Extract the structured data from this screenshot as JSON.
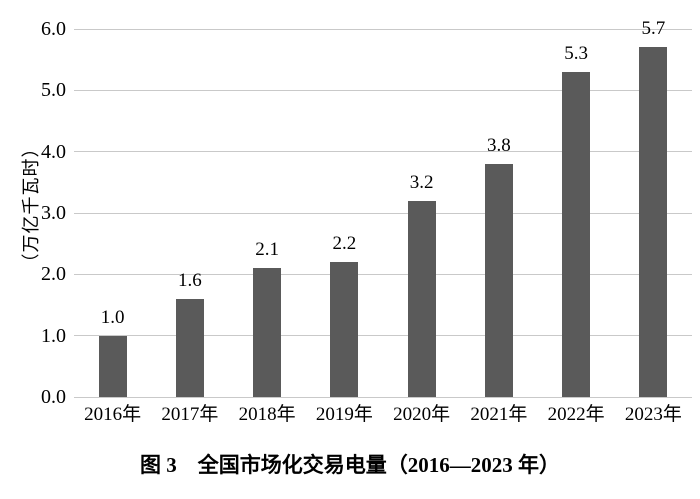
{
  "figure": {
    "caption": "图 3　全国市场化交易电量（2016—2023 年）"
  },
  "chart_data": {
    "type": "bar",
    "title": "图 3　全国市场化交易电量（2016—2023 年）",
    "categories": [
      "2016年",
      "2017年",
      "2018年",
      "2019年",
      "2020年",
      "2021年",
      "2022年",
      "2023年"
    ],
    "values": [
      1.0,
      1.6,
      2.1,
      2.2,
      3.2,
      3.8,
      5.3,
      5.7
    ],
    "value_labels": [
      "1.0",
      "1.6",
      "2.1",
      "2.2",
      "3.2",
      "3.8",
      "5.3",
      "5.7"
    ],
    "xlabel": "",
    "ylabel": "（万亿千瓦时）",
    "ylim": [
      0,
      6.0
    ],
    "y_ticks": [
      0.0,
      1.0,
      2.0,
      3.0,
      4.0,
      5.0,
      6.0
    ],
    "y_tick_labels": [
      "0.0",
      "1.0",
      "2.0",
      "3.0",
      "4.0",
      "5.0",
      "6.0"
    ],
    "grid": true,
    "legend": false,
    "bar_color": "#5a5a5a",
    "gridline_color": "#c9c9c9",
    "text_color": "#000000",
    "background_color": "#ffffff"
  }
}
